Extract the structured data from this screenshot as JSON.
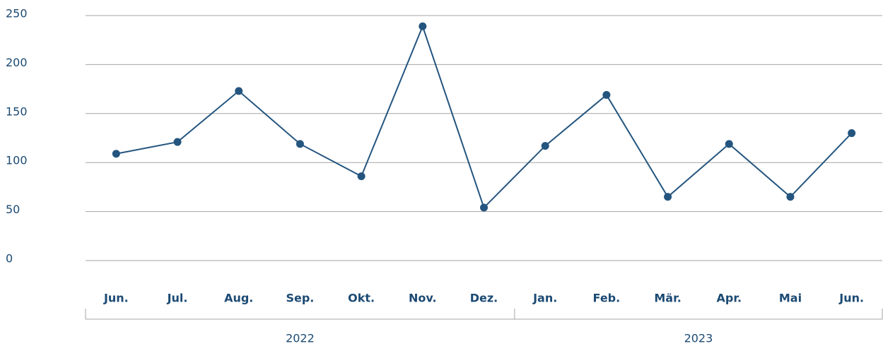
{
  "chart_data": {
    "type": "line",
    "categories": [
      "Jun.",
      "Jul.",
      "Aug.",
      "Sep.",
      "Okt.",
      "Nov.",
      "Dez.",
      "Jan.",
      "Feb.",
      "Mär.",
      "Apr.",
      "Mai",
      "Jun."
    ],
    "groups": [
      {
        "label": "2022",
        "count": 7
      },
      {
        "label": "2023",
        "count": 6
      }
    ],
    "series": [
      {
        "color": "#24557f",
        "values": [
          109,
          121,
          173,
          119,
          86,
          239,
          54,
          117,
          169,
          65,
          119,
          65,
          130
        ]
      }
    ],
    "ylim": [
      0,
      250
    ],
    "yticks": [
      0,
      50,
      100,
      150,
      200,
      250
    ],
    "grid": true
  }
}
